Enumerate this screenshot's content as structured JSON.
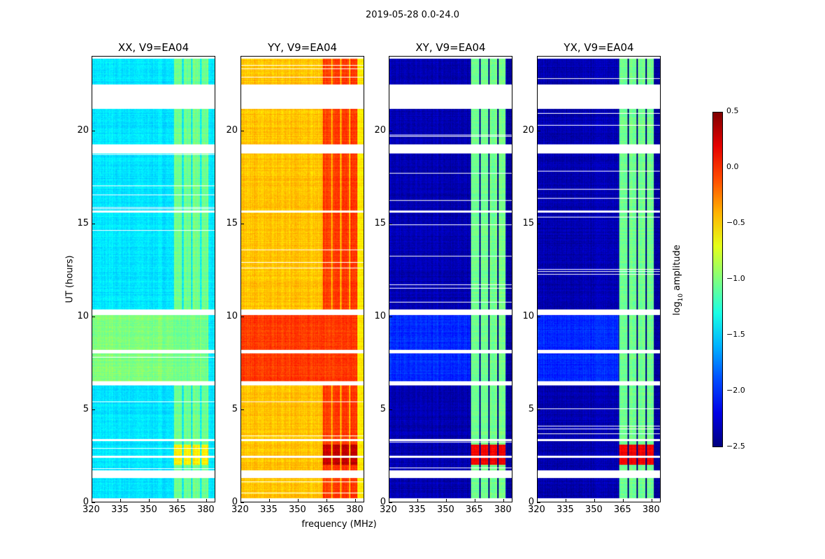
{
  "chart_data": {
    "type": "heatmap",
    "title": "2019-05-28 0.0-24.0",
    "xlabel": "frequency (MHz)",
    "ylabel": "UT (hours)",
    "xlim": [
      320,
      384.8
    ],
    "ylim": [
      0,
      24
    ],
    "xticks": [
      320,
      335,
      350,
      365,
      380
    ],
    "yticks": [
      0,
      5,
      10,
      15,
      20
    ],
    "colorbar": {
      "label_main": "log",
      "label_sub": "10",
      "label_rest": " amplitude",
      "range": [
        -2.5,
        0.5
      ],
      "ticks": [
        "0.5",
        "0.0",
        "−0.5",
        "−1.0",
        "−1.5",
        "−2.0",
        "−2.5"
      ],
      "tick_values": [
        0.5,
        0,
        -0.5,
        -1,
        -1.5,
        -2,
        -2.5
      ],
      "colormap": "jet"
    },
    "data_segments_hours": [
      [
        0.2,
        1.3
      ],
      [
        1.7,
        2.4
      ],
      [
        2.5,
        3.3
      ],
      [
        3.4,
        6.3
      ],
      [
        6.5,
        8.0
      ],
      [
        8.2,
        10.1
      ],
      [
        10.4,
        15.6
      ],
      [
        15.7,
        18.8
      ],
      [
        19.3,
        21.2
      ],
      [
        22.5,
        23.9
      ]
    ],
    "band_columns_mhz": [
      [
        363,
        367.3
      ],
      [
        368,
        372
      ],
      [
        372.8,
        377
      ],
      [
        377.8,
        381.5
      ]
    ],
    "panels": [
      {
        "title": "XX, V9=EA04",
        "baseline": -1.45,
        "baseline_6_10h": -1.0,
        "band": -1.05,
        "band_2_3h": -0.6,
        "edge": -1.45
      },
      {
        "title": "YY, V9=EA04",
        "baseline": -0.45,
        "baseline_6_10h": -0.05,
        "band": -0.05,
        "band_2_3h": 0.3,
        "edge": -0.6
      },
      {
        "title": "XY, V9=EA04",
        "baseline": -2.35,
        "baseline_6_10h": -2.0,
        "band": -1.05,
        "band_2_3h": 0.15,
        "edge": -2.4
      },
      {
        "title": "YX, V9=EA04",
        "baseline": -2.35,
        "baseline_6_10h": -2.0,
        "band": -1.05,
        "band_2_3h": 0.15,
        "edge": -2.4
      }
    ]
  }
}
